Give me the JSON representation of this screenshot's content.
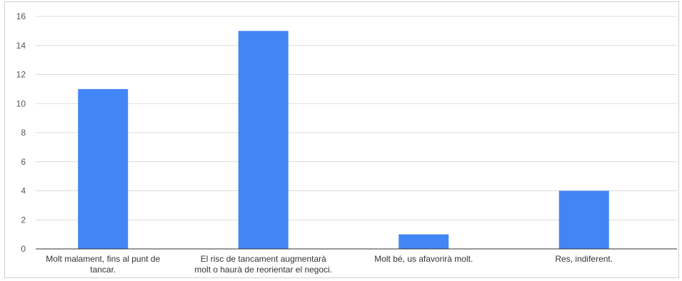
{
  "chart_data": {
    "type": "bar",
    "categories": [
      [
        "Molt malament, fins al punt de",
        "tancar."
      ],
      [
        "El risc de tancament augmentarà",
        "molt o haurà de reorientar el negoci."
      ],
      [
        "Molt bé, us afavorirà molt."
      ],
      [
        "Res, indiferent."
      ]
    ],
    "values": [
      11,
      15,
      1,
      4
    ],
    "ylim": [
      0,
      16
    ],
    "yticks": [
      0,
      2,
      4,
      6,
      8,
      10,
      12,
      14,
      16
    ],
    "grid": true,
    "legend": "none",
    "title": "",
    "xlabel": "",
    "ylabel": "",
    "colors": {
      "bar": "#4285f4",
      "grid": "#dcdcdc",
      "axis": "#333333"
    }
  }
}
